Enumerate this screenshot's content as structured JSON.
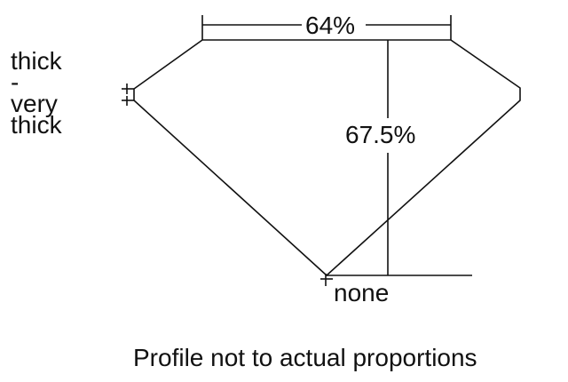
{
  "girdle_label": [
    "thick",
    "-",
    "very",
    "thick"
  ],
  "table_label": "64%",
  "depth_label": "67.5%",
  "culet_label": "none",
  "footer": "Profile not to actual proportions",
  "colors": {
    "line": "#111111",
    "background": "#ffffff"
  }
}
